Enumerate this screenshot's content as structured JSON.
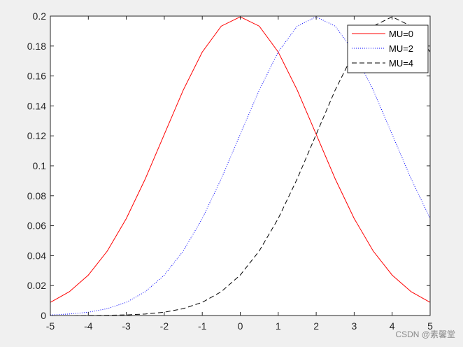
{
  "chart_data": {
    "type": "line",
    "x": [
      -5,
      -4.5,
      -4,
      -3.5,
      -3,
      -2.5,
      -2,
      -1.5,
      -1,
      -0.5,
      0,
      0.5,
      1,
      1.5,
      2,
      2.5,
      3,
      3.5,
      4,
      4.5,
      5
    ],
    "series": [
      {
        "name": "MU=0",
        "color": "#ff0000",
        "style": "solid",
        "values": [
          0.0088,
          0.0159,
          0.027,
          0.0431,
          0.0648,
          0.0913,
          0.121,
          0.1506,
          0.176,
          0.1933,
          0.1995,
          0.1933,
          0.176,
          0.1506,
          0.121,
          0.0913,
          0.0648,
          0.0431,
          0.027,
          0.0159,
          0.0088
        ]
      },
      {
        "name": "MU=2",
        "color": "#0000ff",
        "style": "dotted",
        "values": [
          0.0004,
          0.001,
          0.0022,
          0.0046,
          0.0088,
          0.0159,
          0.027,
          0.0431,
          0.0648,
          0.0913,
          0.121,
          0.1506,
          0.176,
          0.1933,
          0.1995,
          0.1933,
          0.176,
          0.1506,
          0.121,
          0.0913,
          0.0648
        ]
      },
      {
        "name": "MU=4",
        "color": "#000000",
        "style": "dashed",
        "values": [
          0,
          0,
          0.0001,
          0.0002,
          0.0004,
          0.001,
          0.0022,
          0.0046,
          0.0088,
          0.0159,
          0.027,
          0.0431,
          0.0648,
          0.0913,
          0.121,
          0.1506,
          0.176,
          0.1933,
          0.1995,
          0.1933,
          0.176
        ]
      }
    ],
    "xlim": [
      -5,
      5
    ],
    "xticks": [
      -5,
      -4,
      -3,
      -2,
      -1,
      0,
      1,
      2,
      3,
      4,
      5
    ],
    "ylim": [
      0,
      0.2
    ],
    "yticks": [
      0,
      0.02,
      0.04,
      0.06,
      0.08,
      0.1,
      0.12,
      0.14,
      0.16,
      0.18,
      0.2
    ],
    "legend_position": "upper right",
    "grid": false,
    "watermark": "CSDN @素馨堂"
  }
}
